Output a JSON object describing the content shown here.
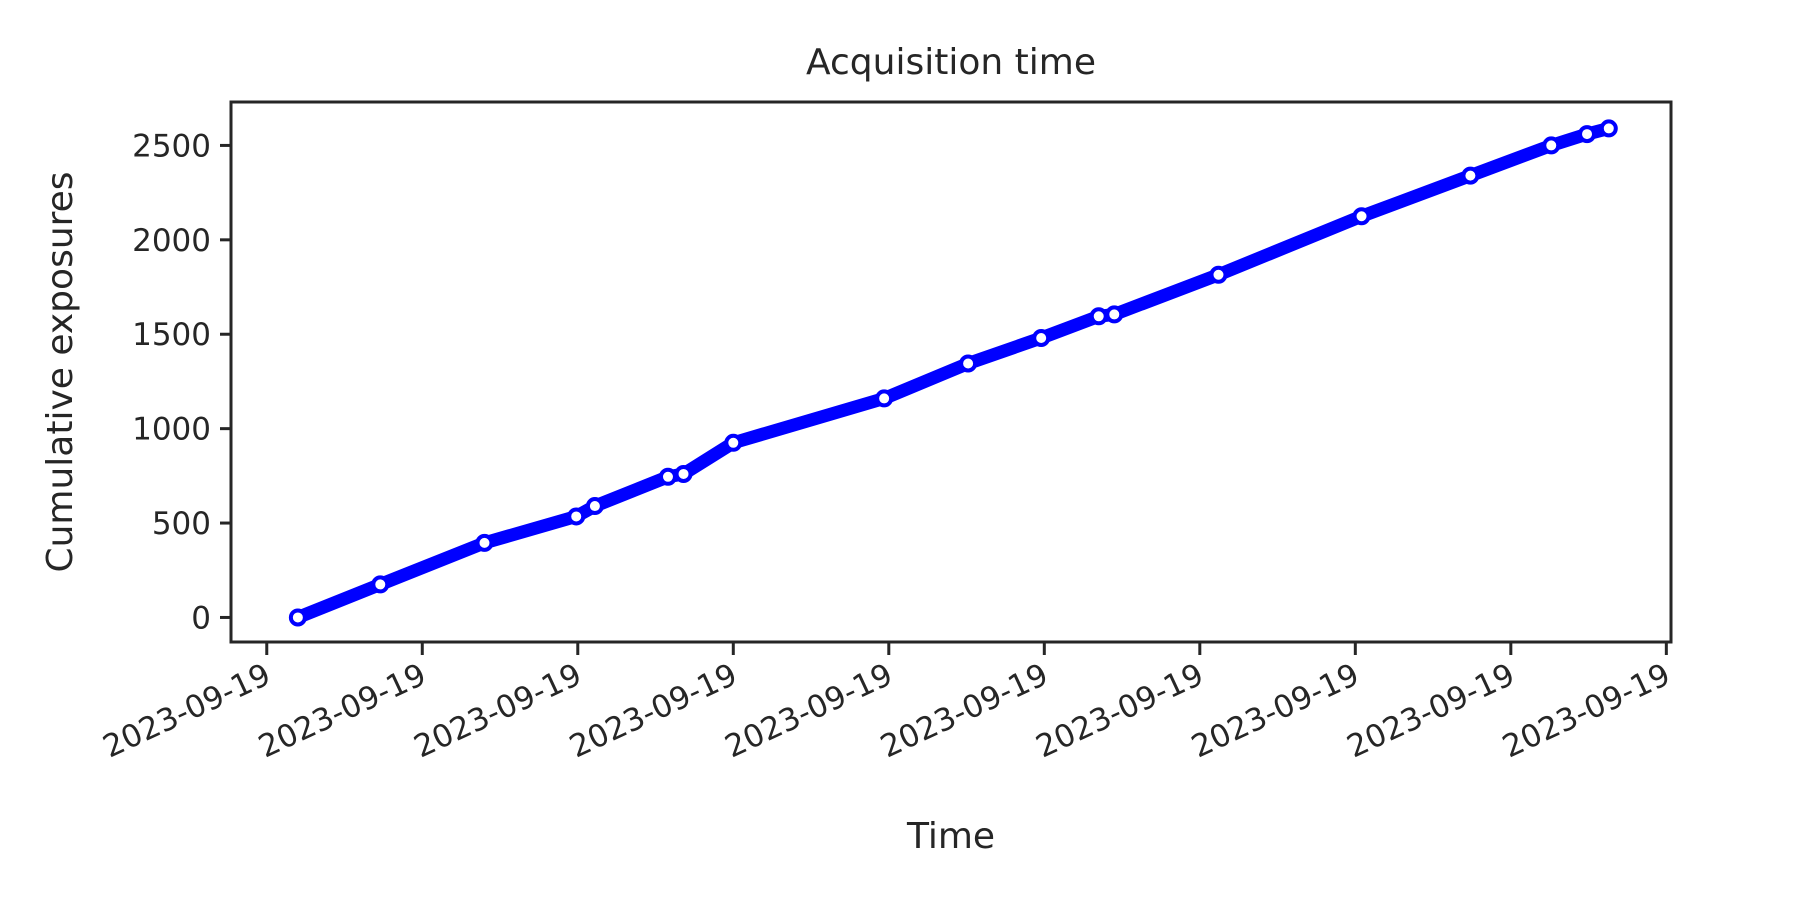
{
  "chart_data": {
    "type": "line",
    "title": "Acquisition time",
    "xlabel": "Time",
    "ylabel": "Cumulative exposures",
    "grid": false,
    "legend": "none",
    "color": "#0000ff",
    "marker_fill": "#ffffff",
    "y_ticks": [
      0,
      500,
      1000,
      1500,
      2000,
      2500
    ],
    "ylim": [
      -130,
      2730
    ],
    "x_tick_labels": [
      "2023-09-19",
      "2023-09-19",
      "2023-09-19",
      "2023-09-19",
      "2023-09-19",
      "2023-09-19",
      "2023-09-19",
      "2023-09-19",
      "2023-09-19",
      "2023-09-19"
    ],
    "x_tick_values": [
      0,
      1,
      2,
      3,
      4,
      5,
      6,
      7,
      8,
      9
    ],
    "xlim": [
      -0.23,
      9.03
    ],
    "series": [
      {
        "x": [
          0.2,
          0.73,
          1.4,
          1.99,
          2.11,
          2.58,
          2.68,
          3.0,
          3.97,
          4.51,
          4.98,
          5.35,
          5.45,
          6.12,
          7.04,
          7.74,
          8.26,
          8.49,
          8.63
        ],
        "values": [
          0,
          175,
          395,
          535,
          590,
          745,
          760,
          925,
          1160,
          1345,
          1480,
          1595,
          1605,
          1815,
          2125,
          2340,
          2500,
          2560,
          2590
        ]
      }
    ]
  }
}
